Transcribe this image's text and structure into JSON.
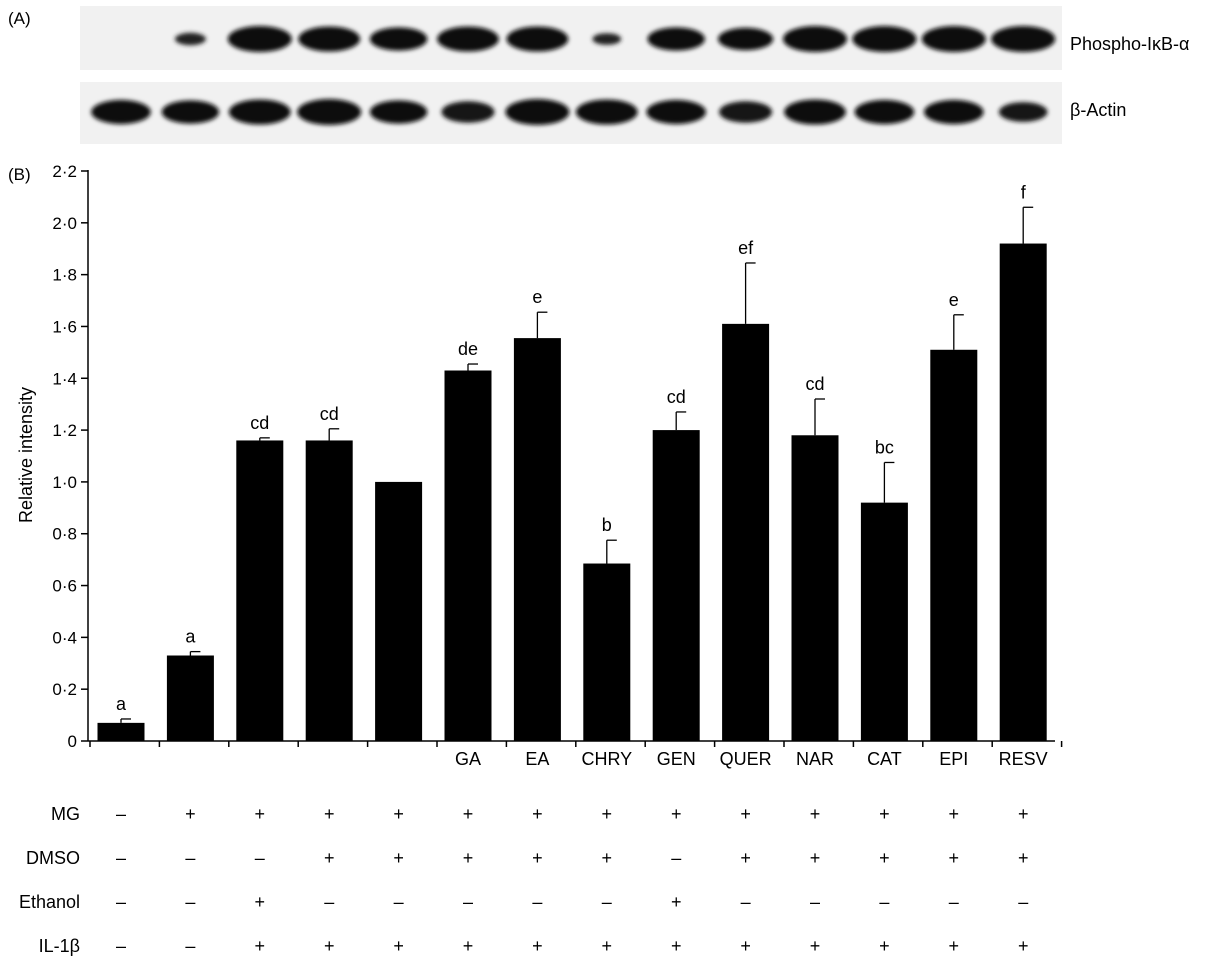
{
  "panel_a": {
    "label": "(A)",
    "blots": [
      {
        "name": "Phospho-IκB-α",
        "band_intensity": [
          0,
          0.25,
          1,
          0.95,
          0.85,
          0.95,
          0.95,
          0.2,
          0.85,
          0.8,
          1,
          1,
          1,
          1
        ]
      },
      {
        "name": "β-Actin",
        "band_intensity": [
          0.9,
          0.85,
          0.95,
          1,
          0.85,
          0.75,
          1,
          0.95,
          0.9,
          0.75,
          0.95,
          0.9,
          0.9,
          0.65
        ]
      }
    ]
  },
  "panel_b_label": "(B)",
  "chart_data": {
    "type": "bar",
    "ylabel": "Relative intensity",
    "ylim": [
      0,
      2.2
    ],
    "yticks": [
      0,
      0.2,
      0.4,
      0.6,
      0.8,
      1.0,
      1.2,
      1.4,
      1.6,
      1.8,
      2.0,
      2.2
    ],
    "ytick_labels": [
      "0",
      "0·2",
      "0·4",
      "0·6",
      "0·8",
      "1·0",
      "1·2",
      "1·4",
      "1·6",
      "1·8",
      "2·0",
      "2·2"
    ],
    "categories": [
      "",
      "",
      "",
      "",
      "",
      "GA",
      "EA",
      "CHRY",
      "GEN",
      "QUER",
      "NAR",
      "CAT",
      "EPI",
      "RESV"
    ],
    "values": [
      0.07,
      0.33,
      1.16,
      1.16,
      1.0,
      1.43,
      1.555,
      0.685,
      1.2,
      1.61,
      1.18,
      0.92,
      1.51,
      1.92
    ],
    "errors": [
      0.015,
      0.015,
      0.01,
      0.045,
      0,
      0.025,
      0.1,
      0.09,
      0.07,
      0.235,
      0.14,
      0.155,
      0.135,
      0.14
    ],
    "significance_labels": [
      "a",
      "a",
      "cd",
      "cd",
      "",
      "de",
      "e",
      "b",
      "cd",
      "ef",
      "cd",
      "bc",
      "e",
      "f"
    ],
    "bar_color": "#000000",
    "grid": false
  },
  "treatment_table": {
    "rows": [
      {
        "label": "MG",
        "values": [
          "–",
          "+",
          "+",
          "+",
          "+",
          "+",
          "+",
          "+",
          "+",
          "+",
          "+",
          "+",
          "+",
          "+"
        ]
      },
      {
        "label": "DMSO",
        "values": [
          "–",
          "–",
          "–",
          "+",
          "+",
          "+",
          "+",
          "+",
          "–",
          "+",
          "+",
          "+",
          "+",
          "+"
        ]
      },
      {
        "label": "Ethanol",
        "values": [
          "–",
          "–",
          "+",
          "–",
          "–",
          "–",
          "–",
          "–",
          "+",
          "–",
          "–",
          "–",
          "–",
          "–"
        ]
      },
      {
        "label": "IL-1β",
        "values": [
          "–",
          "–",
          "+",
          "+",
          "+",
          "+",
          "+",
          "+",
          "+",
          "+",
          "+",
          "+",
          "+",
          "+"
        ]
      }
    ]
  }
}
